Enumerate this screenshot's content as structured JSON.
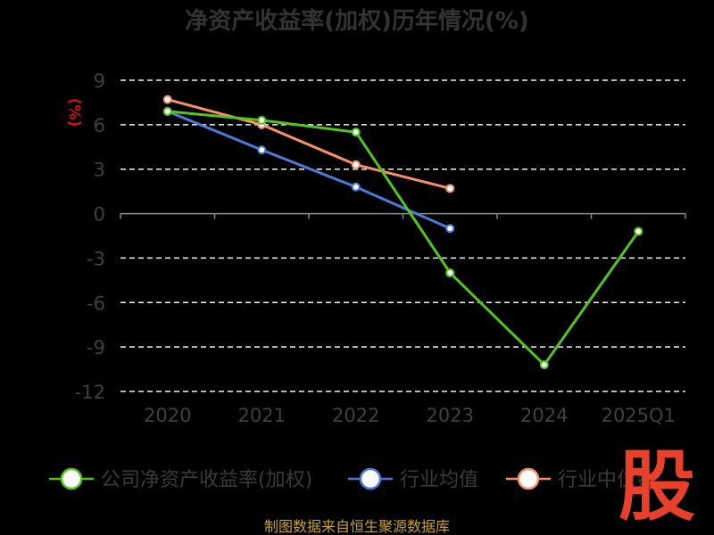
{
  "chart_data": {
    "type": "line",
    "title": "净资产收益率(加权)历年情况(%)",
    "ylabel": "(%)",
    "categories": [
      "2020",
      "2021",
      "2022",
      "2023",
      "2024",
      "2025Q1"
    ],
    "yticks": [
      "9",
      "6",
      "3",
      "0",
      "-3",
      "-6",
      "-9",
      "-12"
    ],
    "ylim": [
      -12,
      9
    ],
    "grid": true,
    "legend_position": "bottom",
    "series": [
      {
        "name": "公司净资产收益率(加权)",
        "color": "#52c41a",
        "values": [
          6.9,
          6.3,
          5.5,
          -4.0,
          -10.2,
          -1.2
        ]
      },
      {
        "name": "行业均值",
        "color": "#4a7bd8",
        "values": [
          6.9,
          4.3,
          1.8,
          -1.0,
          null,
          null
        ]
      },
      {
        "name": "行业中位数",
        "color": "#f5906a",
        "values": [
          7.7,
          6.0,
          3.3,
          1.7,
          null,
          null
        ]
      }
    ]
  },
  "footer": {
    "source": "制图数据来自恒生聚源数据库"
  },
  "logo": {
    "text": "股"
  }
}
